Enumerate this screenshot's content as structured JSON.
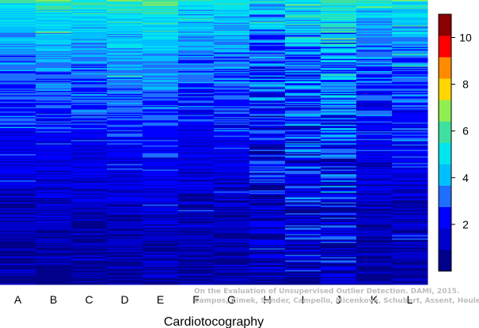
{
  "chart_data": {
    "type": "heatmap",
    "title": "",
    "xlabel": "Cardiotocography",
    "ylabel": "",
    "categories": [
      "A",
      "B",
      "C",
      "D",
      "E",
      "F",
      "G",
      "H",
      "I",
      "J",
      "K",
      "L"
    ],
    "n_rows": 260,
    "colorbar": {
      "ticks": [
        2,
        4,
        6,
        8,
        10
      ],
      "range": [
        0,
        11
      ],
      "colors": [
        "#00008b",
        "#0000cd",
        "#0000ff",
        "#1e6fff",
        "#00bfff",
        "#00e5ee",
        "#40e0a0",
        "#90ee50",
        "#ffd700",
        "#ff8c00",
        "#ff0000",
        "#8b0000"
      ]
    },
    "column_profiles": [
      {
        "label": "A",
        "top": 5.6,
        "bottom": 0.4,
        "noise": 0.9
      },
      {
        "label": "B",
        "top": 6.0,
        "bottom": 0.4,
        "noise": 0.9
      },
      {
        "label": "C",
        "top": 5.8,
        "bottom": 0.4,
        "noise": 0.8
      },
      {
        "label": "D",
        "top": 6.2,
        "bottom": 0.5,
        "noise": 0.8
      },
      {
        "label": "E",
        "top": 6.4,
        "bottom": 0.5,
        "noise": 0.8
      },
      {
        "label": "F",
        "top": 5.2,
        "bottom": 0.5,
        "noise": 0.9
      },
      {
        "label": "G",
        "top": 5.4,
        "bottom": 0.5,
        "noise": 0.9
      },
      {
        "label": "H",
        "top": 5.0,
        "bottom": 0.6,
        "noise": 1.6
      },
      {
        "label": "I",
        "top": 5.4,
        "bottom": 1.0,
        "noise": 1.8
      },
      {
        "label": "J",
        "top": 5.8,
        "bottom": 1.2,
        "noise": 1.8
      },
      {
        "label": "K",
        "top": 5.2,
        "bottom": 0.4,
        "noise": 0.9
      },
      {
        "label": "L",
        "top": 5.4,
        "bottom": 0.6,
        "noise": 1.0
      }
    ]
  },
  "annotation": {
    "line1": "On the Evaluation of Unsupervised Outlier Detection. DAMI, 2015.",
    "line2": "Campos, Zimek, Sander, Campello, Micenková, Schubert, Assent, Houle"
  }
}
